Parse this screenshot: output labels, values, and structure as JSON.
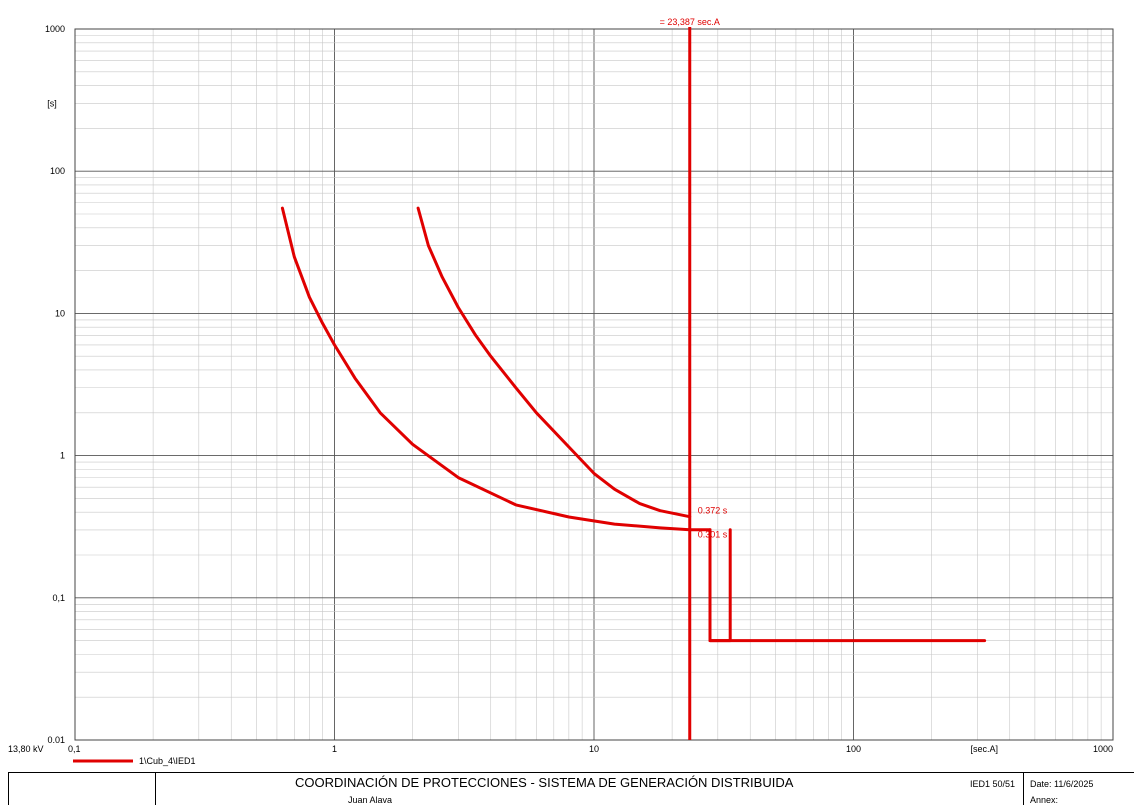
{
  "chart_data": {
    "type": "line",
    "x_scale": "log",
    "y_scale": "log",
    "xlim": [
      0.1,
      1000
    ],
    "ylim": [
      0.01,
      1000
    ],
    "grid": true,
    "xlabel": "[sec.A]",
    "ylabel": "[s]",
    "x_tick_labels": [
      "0,1",
      "1",
      "10",
      "100",
      "1000"
    ],
    "y_tick_labels": [
      "0.01",
      "0,1",
      "1",
      "10",
      "100",
      "1000"
    ],
    "voltage_label": "13,80 kV",
    "series_color": "#e00000",
    "series": [
      {
        "name": "1\\Cub_4\\IED1",
        "segments": [
          {
            "x": [
              0.63,
              0.7,
              0.8,
              0.9,
              1.0,
              1.2,
              1.5,
              2.0,
              3.0,
              5.0,
              8.0,
              12.0,
              18.0,
              23.387,
              28.0
            ],
            "y": [
              55,
              25,
              13,
              8.5,
              6.0,
              3.5,
              2.0,
              1.2,
              0.7,
              0.45,
              0.37,
              0.33,
              0.31,
              0.301,
              0.301
            ]
          },
          {
            "x": [
              28.0,
              28.0,
              33.5,
              33.5
            ],
            "y": [
              0.301,
              0.05,
              0.05,
              0.301
            ]
          },
          {
            "x": [
              28.0,
              320.0
            ],
            "y": [
              0.05,
              0.05
            ]
          },
          {
            "x": [
              2.1,
              2.3,
              2.6,
              3.0,
              3.5,
              4.0,
              5.0,
              6.0,
              8.0,
              10.0,
              12.0,
              15.0,
              18.0,
              23.387
            ],
            "y": [
              55,
              30,
              18,
              11,
              7.0,
              5.0,
              3.0,
              2.0,
              1.15,
              0.75,
              0.58,
              0.46,
              0.41,
              0.372
            ]
          }
        ]
      }
    ],
    "marker": {
      "x": 23.387,
      "label": "= 23,387 sec.A"
    },
    "annotations": [
      {
        "text": "0.372 s",
        "x": 23.387,
        "y": 0.372
      },
      {
        "text": "0.301 s",
        "x": 23.387,
        "y": 0.301
      }
    ]
  },
  "footer": {
    "title": "COORDINACIÓN DE PROTECCIONES - SISTEMA DE GENERACIÓN DISTRIBUIDA",
    "author": "Juan Alava",
    "device": "IED1 50/51",
    "date": "Date: 11/6/2025",
    "annex": "Annex:"
  }
}
